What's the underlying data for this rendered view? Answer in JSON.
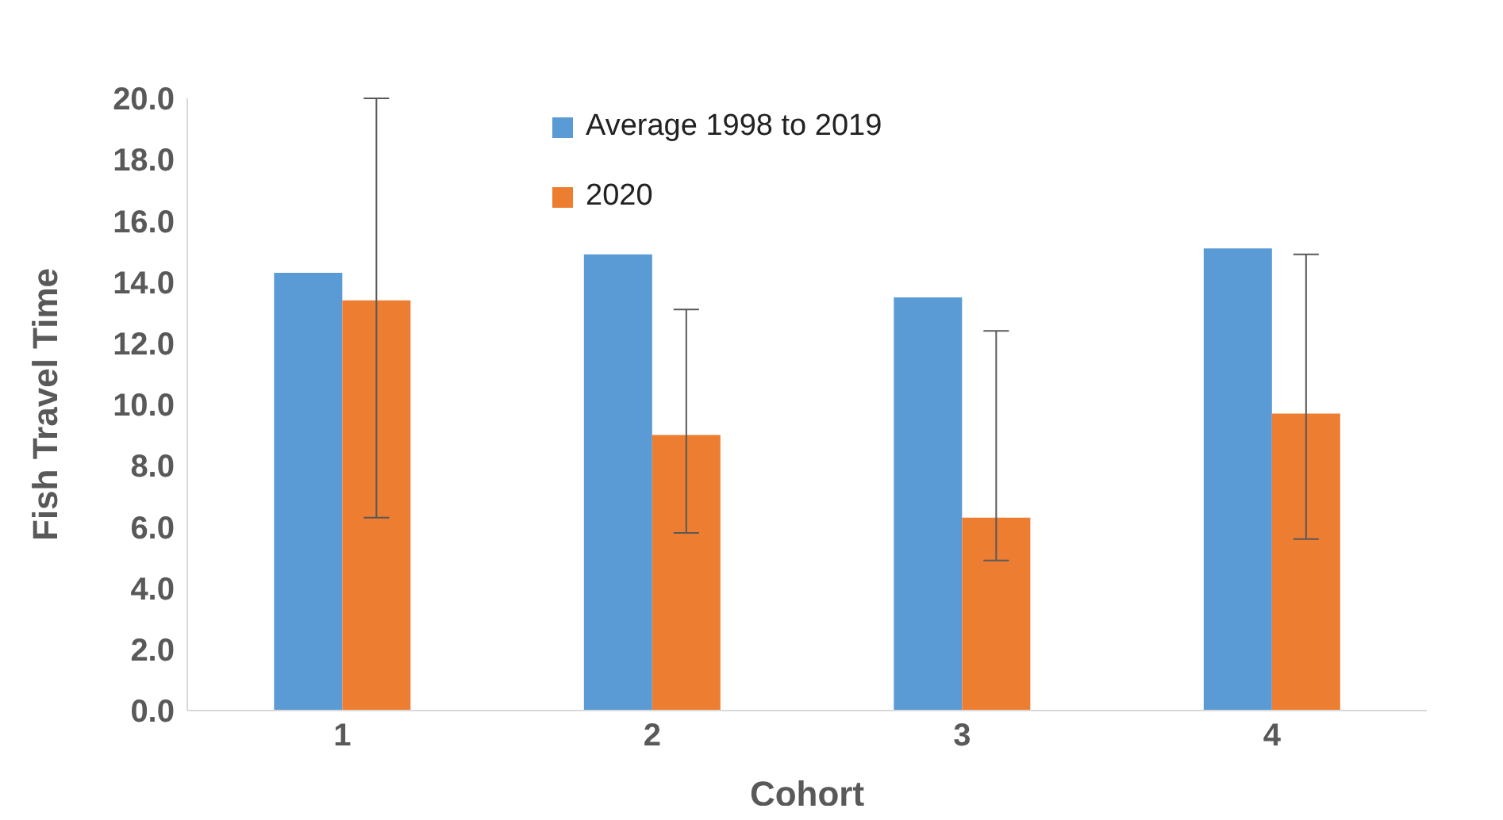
{
  "chart_data": {
    "type": "bar",
    "xlabel": "Cohort",
    "ylabel": "Fish Travel Time",
    "categories": [
      "1",
      "2",
      "3",
      "4"
    ],
    "series": [
      {
        "name": "Average 1998 to 2019",
        "color": "#5b9bd5",
        "values": [
          14.3,
          14.9,
          13.5,
          15.1
        ]
      },
      {
        "name": "2020",
        "color": "#ed7d31",
        "values": [
          13.4,
          9.0,
          6.3,
          9.7
        ],
        "errors": [
          [
            6.3,
            20.0
          ],
          [
            5.8,
            13.1
          ],
          [
            4.9,
            12.4
          ],
          [
            5.6,
            14.9
          ]
        ]
      }
    ],
    "ylim": [
      0,
      20
    ],
    "yticks": [
      {
        "value": 0,
        "label": "0.0"
      },
      {
        "value": 2,
        "label": "2.0"
      },
      {
        "value": 4,
        "label": "4.0"
      },
      {
        "value": 6,
        "label": "6.0"
      },
      {
        "value": 8,
        "label": "8.0"
      },
      {
        "value": 10,
        "label": "10.0"
      },
      {
        "value": 12,
        "label": "12.0"
      },
      {
        "value": 14,
        "label": "14.0"
      },
      {
        "value": 16,
        "label": "16.0"
      },
      {
        "value": 18,
        "label": "18.0"
      },
      {
        "value": 20,
        "label": "20.0"
      }
    ],
    "grid": false,
    "legend": "top"
  }
}
